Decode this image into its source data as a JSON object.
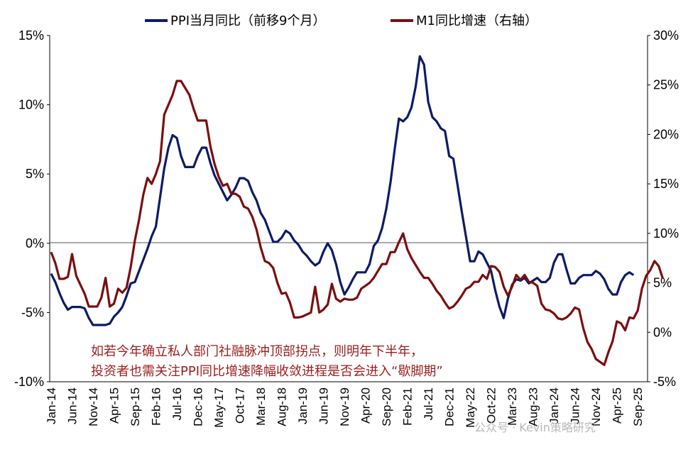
{
  "chart_data": {
    "type": "line",
    "legend": [
      {
        "label": "PPI当月同比（前移9个月）",
        "color": "#0d1b66"
      },
      {
        "label": "M1同比增速（右轴）",
        "color": "#7a0f0f"
      }
    ],
    "legend_position": "top",
    "x_tick_labels": [
      "Jan-14",
      "Jun-14",
      "Nov-14",
      "Apr-15",
      "Sep-15",
      "Feb-16",
      "Jul-16",
      "Dec-16",
      "May-17",
      "Oct-17",
      "Mar-18",
      "Aug-18",
      "Jan-19",
      "Jun-19",
      "Nov-19",
      "Apr-20",
      "Sep-20",
      "Feb-21",
      "Jul-21",
      "Dec-21",
      "May-22",
      "Oct-22",
      "Mar-23",
      "Aug-23",
      "Jan-24",
      "Jun-24",
      "Nov-24",
      "Apr-25",
      "Sep-25"
    ],
    "left_axis": {
      "ylim": [
        -10,
        15
      ],
      "ticks": [
        "15%",
        "10%",
        "5%",
        "0%",
        "-5%",
        "-10%"
      ]
    },
    "right_axis": {
      "ylim": [
        -5,
        30
      ],
      "ticks": [
        "30%",
        "25%",
        "20%",
        "15%",
        "10%",
        "5%",
        "0%",
        "-5%"
      ]
    },
    "grid": false,
    "series": [
      {
        "name": "PPI当月同比（前移9个月）",
        "axis": "left",
        "x_start_index": 0,
        "values": [
          -2.2,
          -2.8,
          -3.6,
          -4.3,
          -4.8,
          -4.6,
          -4.6,
          -4.6,
          -4.7,
          -5.4,
          -5.9,
          -5.9,
          -5.9,
          -5.9,
          -5.8,
          -5.3,
          -5.0,
          -4.6,
          -3.8,
          -2.9,
          -2.8,
          -2.0,
          -1.2,
          -0.4,
          0.5,
          1.2,
          3.3,
          5.4,
          6.9,
          7.8,
          7.6,
          6.3,
          5.5,
          5.5,
          5.5,
          6.3,
          6.9,
          6.9,
          5.8,
          4.9,
          4.3,
          3.7,
          3.1,
          3.5,
          4.0,
          4.7,
          4.7,
          4.5,
          3.7,
          3.1,
          2.2,
          1.7,
          0.9,
          0.1,
          0.1,
          0.4,
          0.9,
          0.7,
          0.2,
          -0.1,
          -0.6,
          -0.9,
          -1.3,
          -1.6,
          -1.4,
          -0.6,
          0.0,
          -0.5,
          -1.5,
          -2.8,
          -3.7,
          -3.2,
          -2.6,
          -2.1,
          -2.1,
          -2.1,
          -1.5,
          -0.2,
          0.2,
          1.1,
          2.5,
          4.4,
          6.8,
          9.0,
          8.8,
          9.1,
          9.8,
          11.3,
          13.5,
          12.9,
          10.2,
          9.1,
          8.8,
          8.3,
          8.1,
          6.3,
          6.1,
          4.2,
          2.3,
          0.5,
          -1.3,
          -1.3,
          -0.6,
          -0.8,
          -1.4,
          -2.0,
          -3.4,
          -4.6,
          -5.4,
          -4.0,
          -3.0,
          -2.6,
          -2.7,
          -2.5,
          -2.9,
          -2.7,
          -2.5,
          -2.8,
          -2.8,
          -2.5,
          -1.4,
          -0.8,
          -0.8,
          -1.9,
          -2.9,
          -2.9,
          -2.5,
          -2.3,
          -2.3,
          -2.3,
          -2.0,
          -2.2,
          -2.6,
          -3.3,
          -3.7,
          -3.7,
          -2.8,
          -2.3,
          -2.1,
          -2.3
        ]
      },
      {
        "name": "M1同比增速（右轴）",
        "axis": "right",
        "x_start_index": 0,
        "values": [
          8.1,
          7.0,
          5.4,
          5.4,
          5.6,
          7.9,
          5.7,
          4.8,
          3.9,
          2.6,
          2.6,
          2.6,
          3.5,
          5.5,
          2.6,
          2.9,
          4.4,
          4.0,
          4.5,
          6.6,
          9.3,
          11.4,
          13.9,
          15.6,
          15.0,
          16.0,
          17.3,
          22.0,
          23.0,
          24.0,
          25.4,
          25.4,
          24.7,
          24.0,
          22.6,
          21.4,
          21.4,
          21.4,
          18.8,
          17.0,
          15.7,
          14.8,
          15.0,
          14.0,
          14.0,
          13.7,
          12.7,
          12.5,
          11.7,
          10.4,
          8.6,
          7.2,
          7.0,
          6.5,
          5.0,
          3.9,
          4.0,
          3.0,
          1.5,
          1.5,
          1.6,
          1.8,
          2.0,
          4.6,
          2.0,
          2.3,
          2.8,
          4.9,
          3.4,
          3.1,
          3.4,
          3.3,
          3.3,
          3.5,
          4.4,
          4.7,
          5.0,
          5.5,
          6.2,
          6.9,
          6.9,
          8.1,
          8.1,
          9.1,
          10.0,
          8.4,
          7.5,
          6.8,
          6.1,
          5.5,
          5.5,
          4.9,
          4.2,
          3.7,
          3.0,
          2.4,
          2.6,
          3.1,
          3.7,
          4.4,
          4.6,
          5.1,
          5.1,
          5.8,
          5.4,
          6.7,
          6.6,
          6.1,
          4.6,
          3.7,
          4.6,
          5.8,
          5.3,
          5.8,
          5.1,
          5.0,
          4.7,
          2.9,
          2.3,
          2.2,
          1.9,
          1.4,
          1.3,
          1.5,
          1.9,
          2.5,
          2.3,
          0.4,
          -1.0,
          -1.7,
          -2.7,
          -3.0,
          -3.3,
          -2.0,
          -0.9,
          1.1,
          0.9,
          0.2,
          1.5,
          1.4,
          2.2,
          4.4,
          5.7,
          6.3,
          7.2,
          6.7,
          5.4
        ]
      }
    ],
    "annotation_lines": [
      "如若今年确立私人部门社融脉冲顶部拐点，则明年下半年，",
      "投资者也需关注PPI同比增速降幅收敛进程是否会进入“歇脚期”"
    ],
    "watermark": "公众号 · Kevin策略研究",
    "colors": {
      "ppi": "#0d1b66",
      "m1": "#7a0f0f",
      "axis": "#000000",
      "annotation": "#9b1c1c"
    }
  }
}
